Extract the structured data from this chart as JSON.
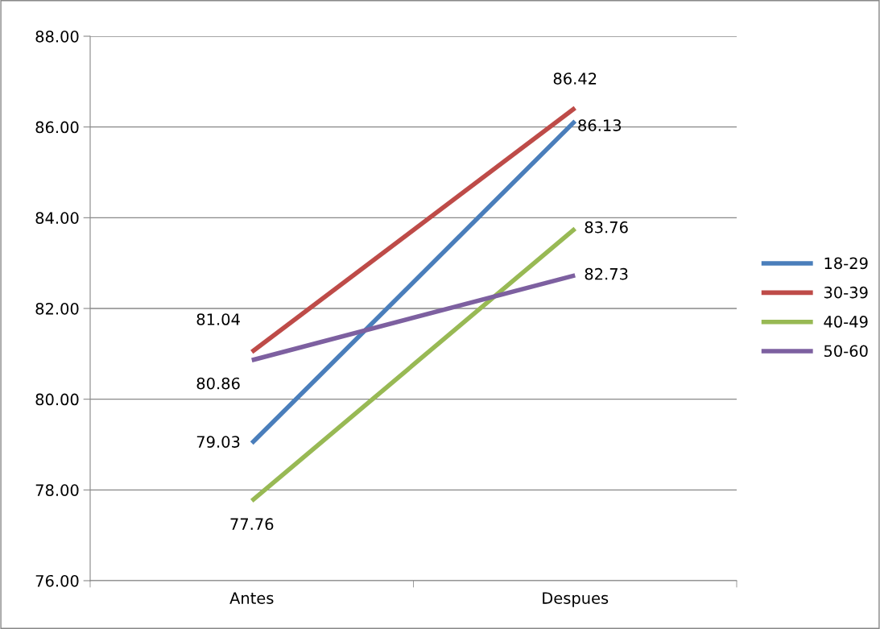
{
  "chart_data": {
    "type": "line",
    "categories": [
      "Antes",
      "Despues"
    ],
    "series": [
      {
        "name": "18-29",
        "color": "#4a7ebb",
        "values": [
          79.03,
          86.13
        ]
      },
      {
        "name": "30-39",
        "color": "#be4b48",
        "values": [
          81.04,
          86.42
        ]
      },
      {
        "name": "40-49",
        "color": "#98b954",
        "values": [
          77.76,
          83.76
        ]
      },
      {
        "name": "50-60",
        "color": "#7d60a0",
        "values": [
          80.86,
          82.73
        ]
      }
    ],
    "ylim": [
      76,
      88
    ],
    "yticks": [
      {
        "value": 76,
        "label": "76.00"
      },
      {
        "value": 78,
        "label": "78.00"
      },
      {
        "value": 80,
        "label": "80.00"
      },
      {
        "value": 82,
        "label": "82.00"
      },
      {
        "value": 84,
        "label": "84.00"
      },
      {
        "value": 86,
        "label": "86.00"
      },
      {
        "value": 88,
        "label": "88.00"
      }
    ],
    "grid": "y",
    "legend": "right",
    "marker": "none",
    "line_style": "solid",
    "data_labels": true
  }
}
